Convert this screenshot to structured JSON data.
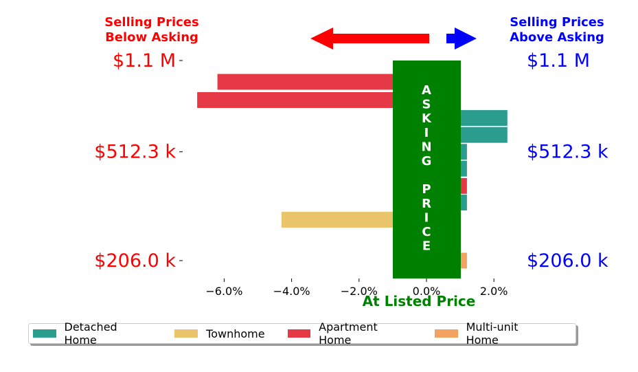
{
  "header": {
    "left_line1": "Selling Prices",
    "left_line2": "Below Asking",
    "right_line1": "Selling Prices",
    "right_line2": "Above Asking"
  },
  "price_labels": [
    "$1.1 M",
    "$512.3 k",
    "$206.0 k"
  ],
  "center_band": {
    "letters": [
      "A",
      "S",
      "K",
      "I",
      "N",
      "G",
      "",
      "P",
      "R",
      "I",
      "C",
      "E"
    ],
    "color": "#008000"
  },
  "xaxis_label": "At Listed Price",
  "colors": {
    "left_text": "#ff0000",
    "right_text": "#0000ff",
    "arrow": "#ff0000",
    "arrow_right": "#0000ff",
    "xlabel": "#008000"
  },
  "chart_data": {
    "type": "bar",
    "orientation": "horizontal",
    "xlim": [
      -7.0,
      2.5
    ],
    "ylim": [
      175,
      1250
    ],
    "y_scale": "log",
    "x_ticks": [
      -6.0,
      -4.0,
      -2.0,
      0.0,
      2.0
    ],
    "x_tick_labels": [
      "−6.0%",
      "−4.0%",
      "−2.0%",
      "0.0%",
      "2.0%"
    ],
    "y_ticks": [
      1100000,
      512300,
      206000
    ],
    "y_tick_labels": [
      "$1.1 M",
      "$512.3 k",
      "$206.0 k"
    ],
    "xlabel": "At Listed Price",
    "series": [
      {
        "name": "Detached Home",
        "color": "#2a9d8f"
      },
      {
        "name": "Townhome",
        "color": "#e9c46a"
      },
      {
        "name": "Apartment Home",
        "color": "#e63946"
      },
      {
        "name": "Multi-unit Home",
        "color": "#f4a261"
      }
    ],
    "bars": [
      {
        "series": "Apartment Home",
        "price_k": 920,
        "pct": -6.2
      },
      {
        "series": "Apartment Home",
        "price_k": 790,
        "pct": -6.8
      },
      {
        "series": "Detached Home",
        "price_k": 680,
        "pct": 2.4
      },
      {
        "series": "Detached Home",
        "price_k": 590,
        "pct": 2.4
      },
      {
        "series": "Detached Home",
        "price_k": 512,
        "pct": 1.2
      },
      {
        "series": "Detached Home",
        "price_k": 445,
        "pct": 1.2
      },
      {
        "series": "Apartment Home",
        "price_k": 385,
        "pct": 1.2
      },
      {
        "series": "Detached Home",
        "price_k": 335,
        "pct": 1.2
      },
      {
        "series": "Townhome",
        "price_k": 290,
        "pct": -4.3
      },
      {
        "series": "Multi-unit Home",
        "price_k": 206,
        "pct": 1.2
      }
    ]
  }
}
